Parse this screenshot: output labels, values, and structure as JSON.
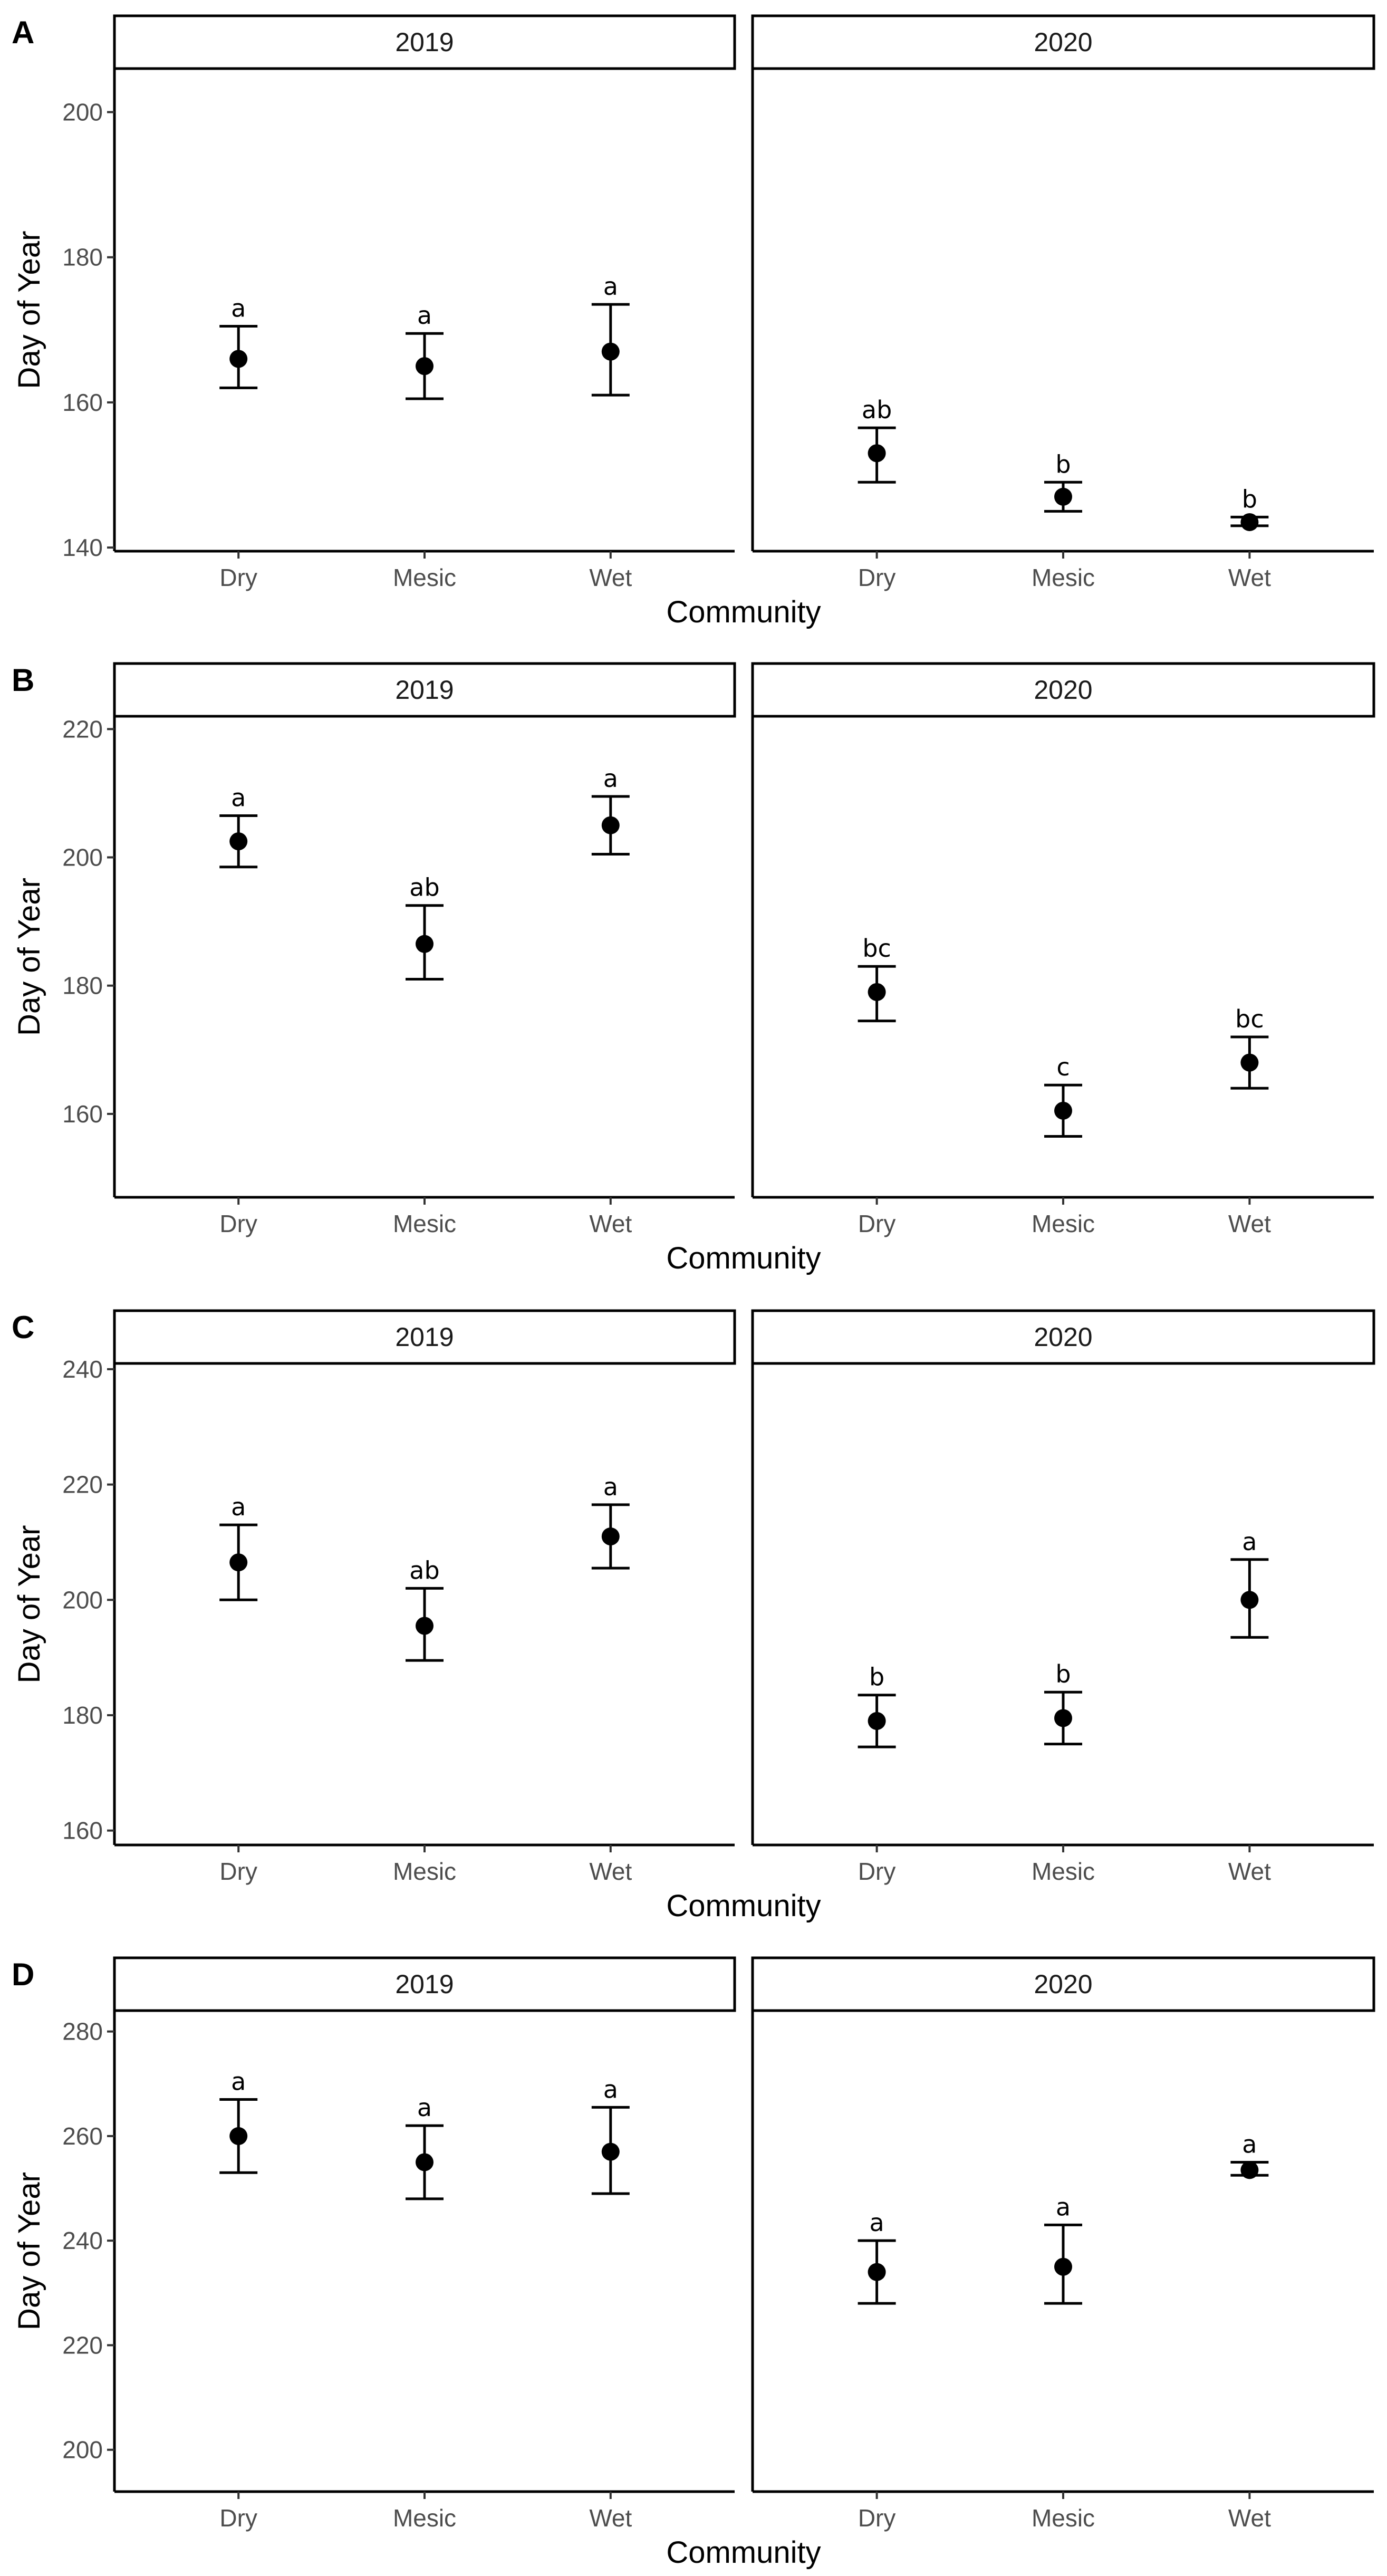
{
  "chart_data": [
    {
      "panel": "A",
      "type": "scatter",
      "xlabel": "Community",
      "ylabel": "Day of Year",
      "categories": [
        "Dry",
        "Mesic",
        "Wet"
      ],
      "ylim": [
        139.5,
        206
      ],
      "yticks": [
        140,
        160,
        180,
        200
      ],
      "facets": [
        {
          "label": "2019",
          "points": [
            {
              "x": "Dry",
              "y": 166,
              "lower": 162,
              "upper": 170.5,
              "letter": "a"
            },
            {
              "x": "Mesic",
              "y": 165,
              "lower": 160.5,
              "upper": 169.5,
              "letter": "a"
            },
            {
              "x": "Wet",
              "y": 167,
              "lower": 161,
              "upper": 173.5,
              "letter": "a"
            }
          ]
        },
        {
          "label": "2020",
          "points": [
            {
              "x": "Dry",
              "y": 153,
              "lower": 149,
              "upper": 156.5,
              "letter": "ab"
            },
            {
              "x": "Mesic",
              "y": 147,
              "lower": 145,
              "upper": 149,
              "letter": "b"
            },
            {
              "x": "Wet",
              "y": 143.5,
              "lower": 143,
              "upper": 144.2,
              "letter": "b"
            }
          ]
        }
      ]
    },
    {
      "panel": "B",
      "type": "scatter",
      "xlabel": "Community",
      "ylabel": "Day of Year",
      "categories": [
        "Dry",
        "Mesic",
        "Wet"
      ],
      "ylim": [
        147,
        222
      ],
      "yticks": [
        160,
        180,
        200,
        220
      ],
      "facets": [
        {
          "label": "2019",
          "points": [
            {
              "x": "Dry",
              "y": 202.5,
              "lower": 198.5,
              "upper": 206.5,
              "letter": "a"
            },
            {
              "x": "Mesic",
              "y": 186.5,
              "lower": 181,
              "upper": 192.5,
              "letter": "ab"
            },
            {
              "x": "Wet",
              "y": 205,
              "lower": 200.5,
              "upper": 209.5,
              "letter": "a"
            }
          ]
        },
        {
          "label": "2020",
          "points": [
            {
              "x": "Dry",
              "y": 179,
              "lower": 174.5,
              "upper": 183,
              "letter": "bc"
            },
            {
              "x": "Mesic",
              "y": 160.5,
              "lower": 156.5,
              "upper": 164.5,
              "letter": "c"
            },
            {
              "x": "Wet",
              "y": 168,
              "lower": 164,
              "upper": 172,
              "letter": "bc"
            }
          ]
        }
      ]
    },
    {
      "panel": "C",
      "type": "scatter",
      "xlabel": "Community",
      "ylabel": "Day of Year",
      "categories": [
        "Dry",
        "Mesic",
        "Wet"
      ],
      "ylim": [
        157.5,
        241
      ],
      "yticks": [
        160,
        180,
        200,
        220,
        240
      ],
      "facets": [
        {
          "label": "2019",
          "points": [
            {
              "x": "Dry",
              "y": 206.5,
              "lower": 200,
              "upper": 213,
              "letter": "a"
            },
            {
              "x": "Mesic",
              "y": 195.5,
              "lower": 189.5,
              "upper": 202,
              "letter": "ab"
            },
            {
              "x": "Wet",
              "y": 211,
              "lower": 205.5,
              "upper": 216.5,
              "letter": "a"
            }
          ]
        },
        {
          "label": "2020",
          "points": [
            {
              "x": "Dry",
              "y": 179,
              "lower": 174.5,
              "upper": 183.5,
              "letter": "b"
            },
            {
              "x": "Mesic",
              "y": 179.5,
              "lower": 175,
              "upper": 184,
              "letter": "b"
            },
            {
              "x": "Wet",
              "y": 200,
              "lower": 193.5,
              "upper": 207,
              "letter": "a"
            }
          ]
        }
      ]
    },
    {
      "panel": "D",
      "type": "scatter",
      "xlabel": "Community",
      "ylabel": "Day of Year",
      "categories": [
        "Dry",
        "Mesic",
        "Wet"
      ],
      "ylim": [
        192,
        284
      ],
      "yticks": [
        200,
        220,
        240,
        260,
        280
      ],
      "facets": [
        {
          "label": "2019",
          "points": [
            {
              "x": "Dry",
              "y": 260,
              "lower": 253,
              "upper": 267,
              "letter": "a"
            },
            {
              "x": "Mesic",
              "y": 255,
              "lower": 248,
              "upper": 262,
              "letter": "a"
            },
            {
              "x": "Wet",
              "y": 257,
              "lower": 249,
              "upper": 265.5,
              "letter": "a"
            }
          ]
        },
        {
          "label": "2020",
          "points": [
            {
              "x": "Dry",
              "y": 234,
              "lower": 228,
              "upper": 240,
              "letter": "a"
            },
            {
              "x": "Mesic",
              "y": 235,
              "lower": 228,
              "upper": 243,
              "letter": "a"
            },
            {
              "x": "Wet",
              "y": 253.5,
              "lower": 252.5,
              "upper": 255,
              "letter": "a"
            }
          ]
        }
      ]
    }
  ]
}
